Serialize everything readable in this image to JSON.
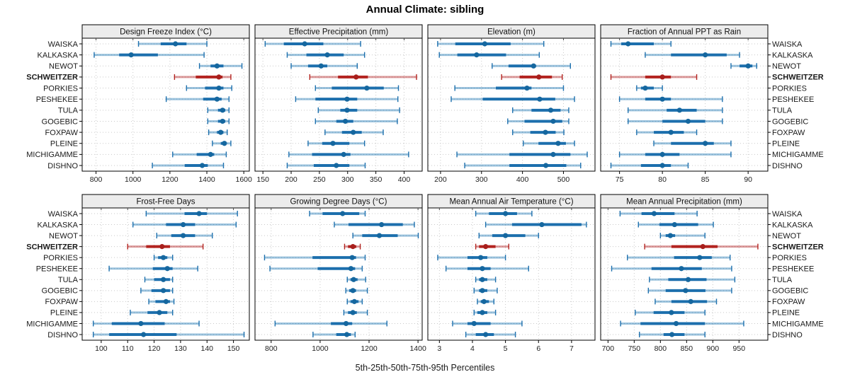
{
  "title": "Annual Climate: sibling",
  "caption": "5th-25th-50th-75th-95th Percentiles",
  "colors": {
    "normal_solid": "#1c6fad",
    "normal_light": "rgba(31,119,180,0.45)",
    "normal_dot": "#15679f",
    "highlight_solid": "#b3231f",
    "highlight_light": "rgba(178,32,34,0.45)",
    "highlight_dot": "#a81f1c",
    "strip_bg": "#ececec",
    "panel_border": "#000000",
    "grid": "#c9c9c9",
    "tick_text": "#222222",
    "label_text": "#1a1a1a"
  },
  "chart_data": {
    "type": "dotplot-percentiles",
    "percentiles": [
      5,
      25,
      50,
      75,
      95
    ],
    "legend_note": "5th-25th-50th-75th-95th Percentiles",
    "sites": [
      "WAISKA",
      "KALKASKA",
      "NEWOT",
      "SCHWEITZER",
      "PORKIES",
      "PESHEKEE",
      "TULA",
      "GOGEBIC",
      "FOXPAW",
      "PLEINE",
      "MICHIGAMME",
      "DISHNO"
    ],
    "highlight_site": "SCHWEITZER",
    "panels": [
      {
        "title": "Design Freeze Index (°C)",
        "xlim": [
          725,
          1630
        ],
        "ticks": [
          800,
          1000,
          1200,
          1400,
          1600
        ],
        "series": [
          [
            1030,
            1150,
            1230,
            1290,
            1400
          ],
          [
            790,
            925,
            990,
            1135,
            1385
          ],
          [
            1360,
            1420,
            1455,
            1490,
            1590
          ],
          [
            1225,
            1340,
            1465,
            1485,
            1530
          ],
          [
            1290,
            1390,
            1465,
            1490,
            1535
          ],
          [
            1180,
            1380,
            1455,
            1480,
            1520
          ],
          [
            1405,
            1460,
            1485,
            1500,
            1520
          ],
          [
            1405,
            1460,
            1485,
            1500,
            1520
          ],
          [
            1410,
            1455,
            1475,
            1490,
            1510
          ],
          [
            1430,
            1475,
            1495,
            1505,
            1530
          ],
          [
            1215,
            1345,
            1420,
            1440,
            1505
          ],
          [
            1105,
            1280,
            1375,
            1405,
            1490
          ]
        ]
      },
      {
        "title": "Effective Precipitation (mm)",
        "xlim": [
          136,
          432
        ],
        "ticks": [
          150,
          200,
          250,
          300,
          350,
          400
        ],
        "series": [
          [
            154,
            187,
            224,
            257,
            323
          ],
          [
            193,
            227,
            264,
            293,
            330
          ],
          [
            200,
            230,
            253,
            264,
            317
          ],
          [
            233,
            283,
            315,
            336,
            422
          ],
          [
            243,
            272,
            334,
            364,
            390
          ],
          [
            208,
            243,
            299,
            317,
            389
          ],
          [
            248,
            287,
            299,
            317,
            392
          ],
          [
            243,
            280,
            296,
            310,
            388
          ],
          [
            260,
            290,
            310,
            325,
            363
          ],
          [
            230,
            255,
            274,
            303,
            330
          ],
          [
            196,
            237,
            293,
            305,
            408
          ],
          [
            193,
            240,
            280,
            303,
            331
          ]
        ]
      },
      {
        "title": "Elevation (m)",
        "xlim": [
          169,
          577
        ],
        "ticks": [
          200,
          300,
          400,
          500
        ],
        "series": [
          [
            193,
            236,
            308,
            371,
            452
          ],
          [
            197,
            241,
            288,
            360,
            441
          ],
          [
            326,
            366,
            427,
            433,
            517
          ],
          [
            349,
            393,
            440,
            472,
            497
          ],
          [
            235,
            335,
            411,
            422,
            500
          ],
          [
            226,
            303,
            442,
            480,
            527
          ],
          [
            376,
            422,
            469,
            493,
            513
          ],
          [
            364,
            405,
            475,
            497,
            513
          ],
          [
            376,
            419,
            456,
            481,
            501
          ],
          [
            402,
            439,
            487,
            506,
            527
          ],
          [
            240,
            368,
            475,
            517,
            558
          ],
          [
            259,
            368,
            457,
            507,
            542
          ]
        ]
      },
      {
        "title": "Fraction of Annual PPT as Rain",
        "xlim": [
          72.8,
          92.3
        ],
        "ticks": [
          75,
          80,
          85,
          90
        ],
        "series": [
          [
            74,
            75.2,
            76,
            79,
            81
          ],
          [
            78,
            81,
            85,
            87.5,
            89
          ],
          [
            88,
            89,
            90,
            90.5,
            91
          ],
          [
            74,
            78,
            80,
            81,
            84
          ],
          [
            77,
            77.5,
            78,
            79,
            80
          ],
          [
            75,
            78,
            80,
            81,
            87
          ],
          [
            76,
            80.5,
            82,
            84,
            87
          ],
          [
            76,
            80,
            83,
            85,
            87
          ],
          [
            77,
            79,
            81,
            82.5,
            84
          ],
          [
            79,
            81,
            85,
            86,
            88
          ],
          [
            75,
            78,
            80,
            82,
            88
          ],
          [
            74,
            77.5,
            80,
            81,
            83
          ]
        ]
      },
      {
        "title": "Frost-Free Days",
        "xlim": [
          92.8,
          156
        ],
        "ticks": [
          100,
          110,
          120,
          130,
          140,
          150
        ],
        "series": [
          [
            117,
            131.5,
            137,
            140,
            151.5
          ],
          [
            112,
            124.5,
            131,
            135.5,
            151
          ],
          [
            121,
            126.5,
            131,
            135.5,
            142
          ],
          [
            110,
            117,
            123,
            126,
            138.5
          ],
          [
            120,
            121.5,
            123.5,
            125,
            127
          ],
          [
            103,
            119.5,
            125,
            127,
            136.5
          ],
          [
            116.5,
            120,
            123.5,
            126,
            127
          ],
          [
            115,
            119,
            123.5,
            126,
            127
          ],
          [
            118,
            120.5,
            124.5,
            126,
            127.5
          ],
          [
            111,
            117.5,
            122,
            125,
            127
          ],
          [
            97,
            104,
            115,
            124,
            137
          ],
          [
            97,
            103,
            116,
            128.5,
            154
          ]
        ]
      },
      {
        "title": "Growing Degree Days (°C)",
        "xlim": [
          734,
          1417
        ],
        "ticks": [
          800,
          1000,
          1200,
          1400
        ],
        "series": [
          [
            957,
            1010,
            1092,
            1160,
            1184
          ],
          [
            1058,
            1116,
            1251,
            1338,
            1385
          ],
          [
            1134,
            1172,
            1242,
            1317,
            1401
          ],
          [
            1100,
            1114,
            1134,
            1148,
            1164
          ],
          [
            773,
            969,
            1131,
            1147,
            1184
          ],
          [
            795,
            990,
            1126,
            1143,
            1172
          ],
          [
            1111,
            1124,
            1137,
            1153,
            1186
          ],
          [
            1105,
            1119,
            1134,
            1147,
            1193
          ],
          [
            1111,
            1124,
            1140,
            1157,
            1172
          ],
          [
            1097,
            1114,
            1134,
            1150,
            1193
          ],
          [
            816,
            1044,
            1106,
            1131,
            1273
          ],
          [
            971,
            1066,
            1109,
            1126,
            1143
          ]
        ]
      },
      {
        "title": "Mean Annual Air Temperature (°C)",
        "xlim": [
          2.65,
          7.71
        ],
        "ticks": [
          3,
          4,
          5,
          6,
          7
        ],
        "series": [
          [
            4.1,
            4.5,
            5.0,
            5.35,
            5.8
          ],
          [
            4.4,
            5.2,
            6.1,
            7.3,
            7.45
          ],
          [
            4.2,
            4.6,
            5.0,
            5.6,
            6.0
          ],
          [
            4.1,
            4.2,
            4.4,
            4.7,
            5.1
          ],
          [
            2.95,
            3.85,
            4.25,
            4.45,
            5.0
          ],
          [
            3.2,
            3.85,
            4.3,
            4.55,
            5.7
          ],
          [
            4.1,
            4.2,
            4.3,
            4.45,
            4.7
          ],
          [
            4.05,
            4.2,
            4.3,
            4.45,
            4.75
          ],
          [
            4.15,
            4.25,
            4.35,
            4.5,
            4.65
          ],
          [
            4.05,
            4.15,
            4.3,
            4.45,
            4.7
          ],
          [
            3.4,
            3.85,
            4.05,
            4.55,
            5.5
          ],
          [
            3.8,
            4.1,
            4.4,
            4.65,
            5.3
          ]
        ]
      },
      {
        "title": "Mean Annual Precipitation (mm)",
        "xlim": [
          686,
          1005
        ],
        "ticks": [
          700,
          750,
          800,
          850,
          900,
          950
        ],
        "series": [
          [
            723,
            764,
            788,
            827,
            870
          ],
          [
            758,
            798,
            827,
            872,
            901
          ],
          [
            800,
            810,
            819,
            828,
            885
          ],
          [
            770,
            821,
            881,
            909,
            986
          ],
          [
            737,
            826,
            875,
            898,
            933
          ],
          [
            707,
            783,
            840,
            879,
            936
          ],
          [
            779,
            815,
            853,
            888,
            942
          ],
          [
            777,
            810,
            848,
            886,
            936
          ],
          [
            790,
            821,
            858,
            889,
            907
          ],
          [
            752,
            787,
            821,
            846,
            885
          ],
          [
            724,
            762,
            830,
            885,
            959
          ],
          [
            760,
            806,
            822,
            846,
            885
          ]
        ]
      }
    ]
  }
}
